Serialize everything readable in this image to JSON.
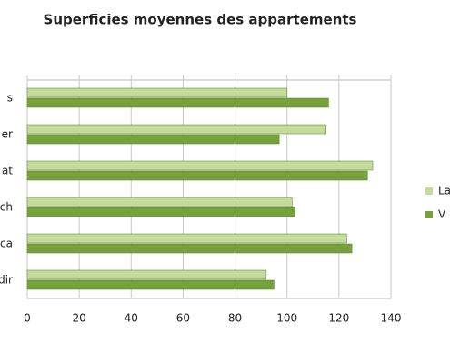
{
  "chart_data": {
    "type": "bar",
    "orientation": "horizontal",
    "title": "Superficies moyennes des appartements",
    "categories": [
      "s",
      "er",
      "at",
      "ch",
      "ca",
      "dir"
    ],
    "series": [
      {
        "name": "La",
        "color": "#c3dc9a",
        "values": [
          100,
          115,
          133,
          102,
          123,
          92
        ]
      },
      {
        "name": "V",
        "color": "#77a13a",
        "values": [
          116,
          97,
          131,
          103,
          125,
          95
        ]
      }
    ],
    "xlim": [
      0,
      140
    ],
    "xticks": [
      0,
      20,
      40,
      60,
      80,
      100,
      120,
      140
    ],
    "grid": true,
    "legend": "right"
  }
}
